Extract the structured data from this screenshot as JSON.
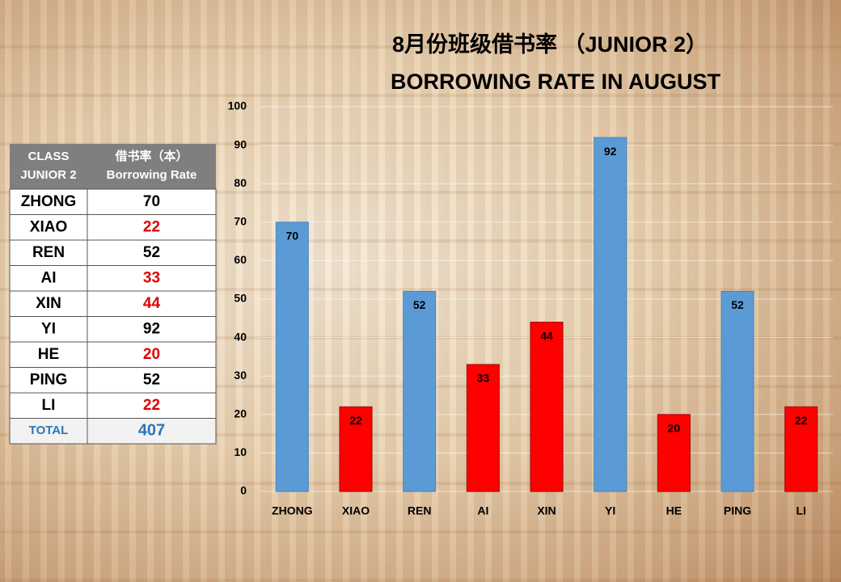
{
  "chart_data": {
    "type": "bar",
    "title": "8月份班级借书率 （JUNIOR 2）",
    "subtitle": "BORROWING RATE IN AUGUST",
    "categories": [
      "ZHONG",
      "XIAO",
      "REN",
      "AI",
      "XIN",
      "YI",
      "HE",
      "PING",
      "LI"
    ],
    "values": [
      70,
      22,
      52,
      33,
      44,
      92,
      20,
      52,
      22
    ],
    "colors": [
      "#5b9bd5",
      "#ff0000",
      "#5b9bd5",
      "#ff0000",
      "#ff0000",
      "#5b9bd5",
      "#ff0000",
      "#5b9bd5",
      "#ff0000"
    ],
    "ylim": [
      0,
      100
    ],
    "yticks": [
      0,
      10,
      20,
      30,
      40,
      50,
      60,
      70,
      80,
      90,
      100
    ],
    "grid": true
  },
  "table": {
    "header": [
      [
        "CLASS",
        "JUNIOR 2"
      ],
      [
        "借书率（本）",
        "Borrowing Rate"
      ]
    ],
    "rows": [
      {
        "name": "ZHONG",
        "value": 70,
        "color": "#000000"
      },
      {
        "name": "XIAO",
        "value": 22,
        "color": "#e00000"
      },
      {
        "name": "REN",
        "value": 52,
        "color": "#000000"
      },
      {
        "name": "AI",
        "value": 33,
        "color": "#e00000"
      },
      {
        "name": "XIN",
        "value": 44,
        "color": "#e00000"
      },
      {
        "name": "YI",
        "value": 92,
        "color": "#000000"
      },
      {
        "name": "HE",
        "value": 20,
        "color": "#e00000"
      },
      {
        "name": "PING",
        "value": 52,
        "color": "#000000"
      },
      {
        "name": "LI",
        "value": 22,
        "color": "#e00000"
      }
    ],
    "total": {
      "label": "TOTAL",
      "value": 407
    }
  }
}
